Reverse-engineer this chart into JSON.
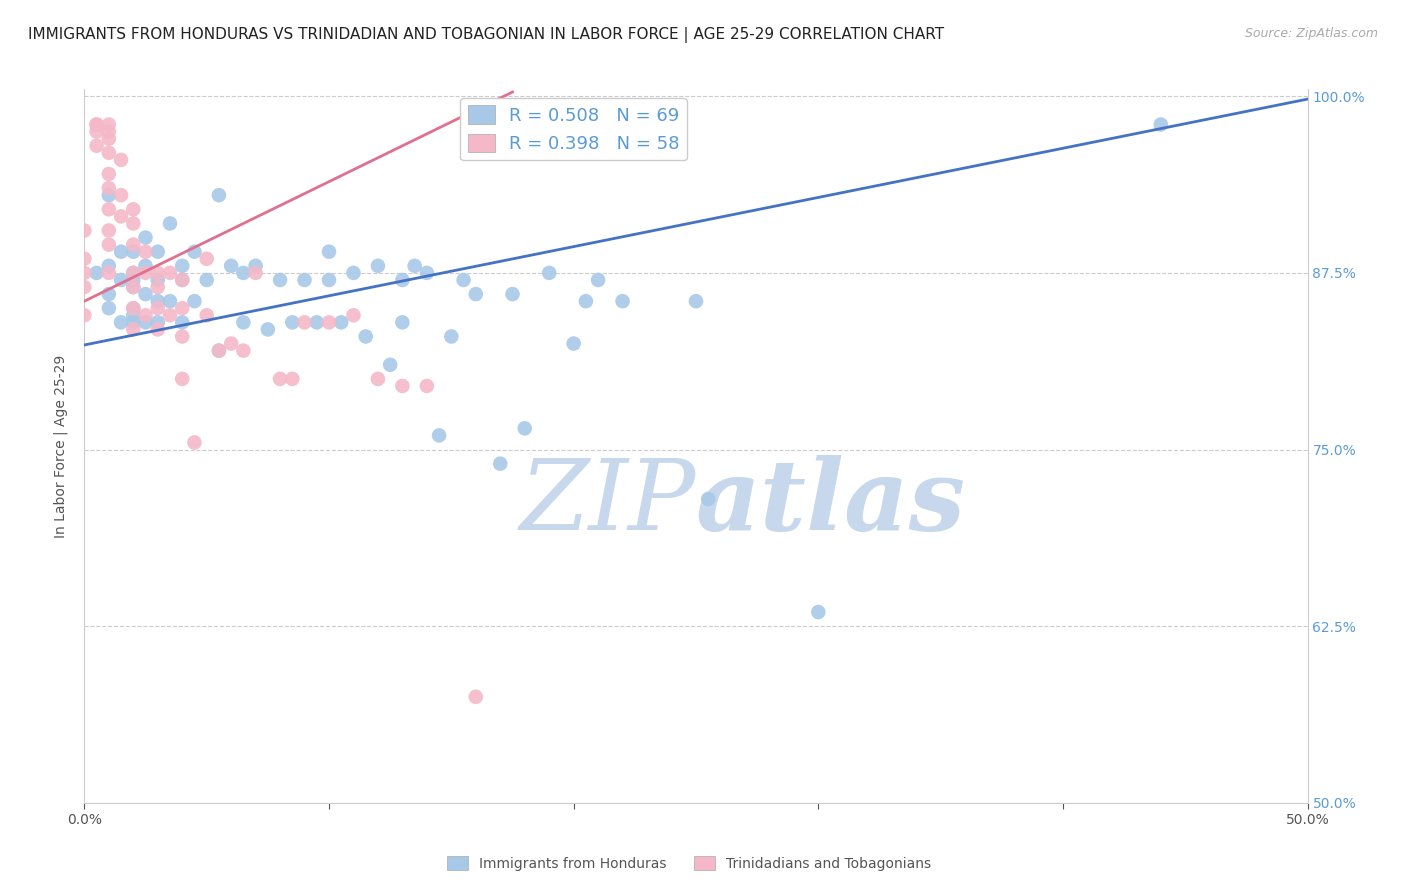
{
  "title": "IMMIGRANTS FROM HONDURAS VS TRINIDADIAN AND TOBAGONIAN IN LABOR FORCE | AGE 25-29 CORRELATION CHART",
  "source": "Source: ZipAtlas.com",
  "xlabel": "",
  "ylabel": "In Labor Force | Age 25-29",
  "xlim": [
    0.0,
    0.5
  ],
  "ylim": [
    0.5,
    1.005
  ],
  "xticks": [
    0.0,
    0.1,
    0.2,
    0.3,
    0.4,
    0.5
  ],
  "yticks": [
    0.5,
    0.625,
    0.75,
    0.875,
    1.0
  ],
  "ytick_labels": [
    "50.0%",
    "62.5%",
    "75.0%",
    "87.5%",
    "100.0%"
  ],
  "xtick_labels": [
    "0.0%",
    "",
    "",
    "",
    "",
    "50.0%"
  ],
  "blue_R": 0.508,
  "blue_N": 69,
  "pink_R": 0.398,
  "pink_N": 58,
  "blue_color": "#a8c8e8",
  "pink_color": "#f4b8c8",
  "blue_line_color": "#4472c4",
  "pink_line_color": "#e07090",
  "watermark_zip": "ZIP",
  "watermark_atlas": "atlas",
  "legend_label_blue": "Immigrants from Honduras",
  "legend_label_pink": "Trinidadians and Tobagonians",
  "blue_scatter_x": [
    0.005,
    0.01,
    0.01,
    0.01,
    0.01,
    0.015,
    0.015,
    0.015,
    0.02,
    0.02,
    0.02,
    0.02,
    0.02,
    0.02,
    0.02,
    0.025,
    0.025,
    0.025,
    0.025,
    0.03,
    0.03,
    0.03,
    0.03,
    0.035,
    0.035,
    0.04,
    0.04,
    0.04,
    0.045,
    0.045,
    0.05,
    0.055,
    0.055,
    0.06,
    0.065,
    0.065,
    0.07,
    0.075,
    0.08,
    0.085,
    0.09,
    0.095,
    0.1,
    0.1,
    0.105,
    0.11,
    0.115,
    0.12,
    0.125,
    0.13,
    0.13,
    0.135,
    0.14,
    0.145,
    0.15,
    0.155,
    0.16,
    0.17,
    0.175,
    0.18,
    0.19,
    0.2,
    0.205,
    0.21,
    0.22,
    0.25,
    0.255,
    0.3,
    0.44
  ],
  "blue_scatter_y": [
    0.875,
    0.93,
    0.88,
    0.86,
    0.85,
    0.89,
    0.87,
    0.84,
    0.89,
    0.875,
    0.87,
    0.865,
    0.85,
    0.845,
    0.84,
    0.9,
    0.88,
    0.86,
    0.84,
    0.89,
    0.87,
    0.855,
    0.84,
    0.91,
    0.855,
    0.88,
    0.87,
    0.84,
    0.89,
    0.855,
    0.87,
    0.93,
    0.82,
    0.88,
    0.875,
    0.84,
    0.88,
    0.835,
    0.87,
    0.84,
    0.87,
    0.84,
    0.89,
    0.87,
    0.84,
    0.875,
    0.83,
    0.88,
    0.81,
    0.87,
    0.84,
    0.88,
    0.875,
    0.76,
    0.83,
    0.87,
    0.86,
    0.74,
    0.86,
    0.765,
    0.875,
    0.825,
    0.855,
    0.87,
    0.855,
    0.855,
    0.715,
    0.635,
    0.98
  ],
  "pink_scatter_x": [
    0.0,
    0.0,
    0.0,
    0.0,
    0.0,
    0.005,
    0.005,
    0.005,
    0.005,
    0.01,
    0.01,
    0.01,
    0.01,
    0.01,
    0.01,
    0.01,
    0.01,
    0.01,
    0.01,
    0.015,
    0.015,
    0.015,
    0.02,
    0.02,
    0.02,
    0.02,
    0.02,
    0.02,
    0.02,
    0.025,
    0.025,
    0.025,
    0.03,
    0.03,
    0.03,
    0.03,
    0.035,
    0.035,
    0.04,
    0.04,
    0.04,
    0.04,
    0.045,
    0.05,
    0.05,
    0.055,
    0.06,
    0.065,
    0.07,
    0.08,
    0.085,
    0.09,
    0.1,
    0.11,
    0.12,
    0.13,
    0.14,
    0.16
  ],
  "pink_scatter_y": [
    0.905,
    0.885,
    0.875,
    0.865,
    0.845,
    0.98,
    0.98,
    0.975,
    0.965,
    0.98,
    0.975,
    0.97,
    0.96,
    0.945,
    0.935,
    0.92,
    0.905,
    0.895,
    0.875,
    0.955,
    0.93,
    0.915,
    0.92,
    0.91,
    0.895,
    0.875,
    0.865,
    0.85,
    0.835,
    0.89,
    0.875,
    0.845,
    0.875,
    0.865,
    0.85,
    0.835,
    0.875,
    0.845,
    0.87,
    0.85,
    0.83,
    0.8,
    0.755,
    0.885,
    0.845,
    0.82,
    0.825,
    0.82,
    0.875,
    0.8,
    0.8,
    0.84,
    0.84,
    0.845,
    0.8,
    0.795,
    0.795,
    0.575
  ],
  "blue_line_x0": 0.0,
  "blue_line_x1": 0.5,
  "blue_line_y0": 0.824,
  "blue_line_y1": 0.998,
  "pink_line_x0": 0.0,
  "pink_line_x1": 0.175,
  "pink_line_y0": 0.855,
  "pink_line_y1": 1.003,
  "background_color": "#ffffff",
  "grid_color": "#cccccc",
  "right_axis_color": "#5b9bd5",
  "title_fontsize": 11,
  "tick_fontsize": 10,
  "watermark_color_zip": "#c8d8ec",
  "watermark_color_atlas": "#c8d8ec",
  "watermark_fontsize": 72
}
